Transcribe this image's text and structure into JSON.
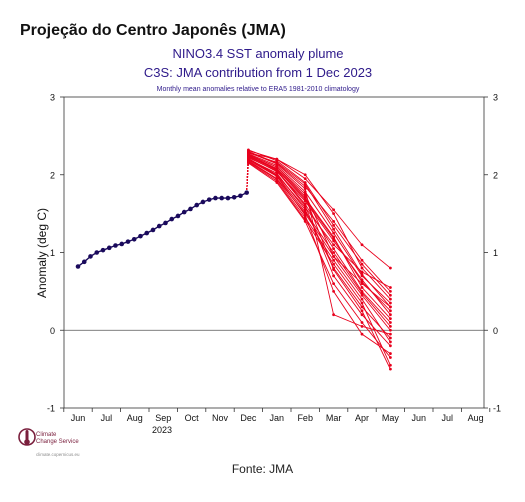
{
  "page_title": "Projeção do Centro Japonês (JMA)",
  "source": "Fonte: JMA",
  "logo": {
    "line1": "Climate",
    "line2": "Change Service",
    "url": "climate.copernicus.eu"
  },
  "colors": {
    "observed": "#1a0a5c",
    "forecast": "#e8001c",
    "title": "#2e1a8a"
  },
  "chart_data": {
    "type": "line",
    "title": "NINO3.4 SST anomaly plume",
    "subtitle": "C3S: JMA contribution from 1 Dec 2023",
    "note": "Monthly mean anomalies relative to ERA5 1981-2010 climatology",
    "ylabel": "Anomaly (deg C)",
    "ylim": [
      -1,
      3
    ],
    "yticks": [
      -1,
      0,
      1,
      2,
      3
    ],
    "xticks": [
      "Jun",
      "Jul",
      "Aug",
      "Sep",
      "Oct",
      "Nov",
      "Dec",
      "Jan",
      "Feb",
      "Mar",
      "Apr",
      "May",
      "Jun",
      "Jul",
      "Aug"
    ],
    "year_label": "2023",
    "observed": {
      "x": [
        0,
        0.22,
        0.44,
        0.66,
        0.88,
        1.1,
        1.32,
        1.54,
        1.76,
        1.98,
        2.2,
        2.42,
        2.64,
        2.86,
        3.08,
        3.3,
        3.52,
        3.74,
        3.96,
        4.18,
        4.4,
        4.62,
        4.84,
        5.06,
        5.28,
        5.5,
        5.72,
        5.94
      ],
      "y": [
        0.82,
        0.88,
        0.95,
        1.0,
        1.03,
        1.06,
        1.09,
        1.11,
        1.14,
        1.17,
        1.21,
        1.25,
        1.29,
        1.34,
        1.38,
        1.43,
        1.47,
        1.52,
        1.56,
        1.61,
        1.65,
        1.68,
        1.7,
        1.7,
        1.7,
        1.71,
        1.73,
        1.77
      ]
    },
    "forecast": {
      "x": [
        6,
        7,
        8,
        9,
        10,
        11
      ],
      "members": [
        [
          2.26,
          2.1,
          1.75,
          0.95,
          0.45,
          0.0
        ],
        [
          2.3,
          2.15,
          1.85,
          1.4,
          0.9,
          0.5
        ],
        [
          2.22,
          2.05,
          1.6,
          0.7,
          0.2,
          -0.2
        ],
        [
          2.28,
          2.2,
          1.95,
          1.55,
          1.1,
          0.8
        ],
        [
          2.18,
          1.95,
          1.5,
          0.95,
          0.6,
          0.3
        ],
        [
          2.25,
          2.08,
          1.7,
          1.2,
          0.55,
          0.15
        ],
        [
          2.2,
          2.02,
          1.55,
          0.8,
          0.3,
          -0.1
        ],
        [
          2.32,
          2.18,
          1.9,
          1.35,
          0.85,
          0.45
        ],
        [
          2.15,
          1.9,
          1.4,
          0.6,
          0.1,
          -0.35
        ],
        [
          2.24,
          2.06,
          1.62,
          1.05,
          0.5,
          0.1
        ],
        [
          2.19,
          1.98,
          1.48,
          0.5,
          -0.05,
          -0.3
        ],
        [
          2.27,
          2.12,
          1.78,
          1.25,
          0.7,
          0.35
        ],
        [
          2.21,
          2.0,
          1.58,
          1.1,
          0.75,
          0.55
        ],
        [
          2.29,
          2.14,
          1.82,
          0.2,
          0.05,
          -0.05
        ],
        [
          2.17,
          1.94,
          1.45,
          0.9,
          0.4,
          -0.15
        ],
        [
          2.23,
          2.04,
          1.66,
          1.15,
          0.65,
          0.2
        ],
        [
          2.31,
          2.2,
          2.0,
          1.5,
          0.8,
          0.4
        ],
        [
          2.16,
          1.92,
          1.42,
          0.85,
          0.35,
          -0.45
        ],
        [
          2.26,
          2.1,
          1.72,
          0.78,
          0.25,
          -0.5
        ],
        [
          2.2,
          1.99,
          1.52,
          1.0,
          0.48,
          0.05
        ],
        [
          2.24,
          2.07,
          1.68,
          1.18,
          0.62,
          0.25
        ],
        [
          2.28,
          2.16,
          1.88,
          1.3,
          0.72,
          0.3
        ]
      ]
    },
    "transition": {
      "from": [
        5.94,
        1.77
      ],
      "to_x": 6
    },
    "zero_line": 0
  }
}
